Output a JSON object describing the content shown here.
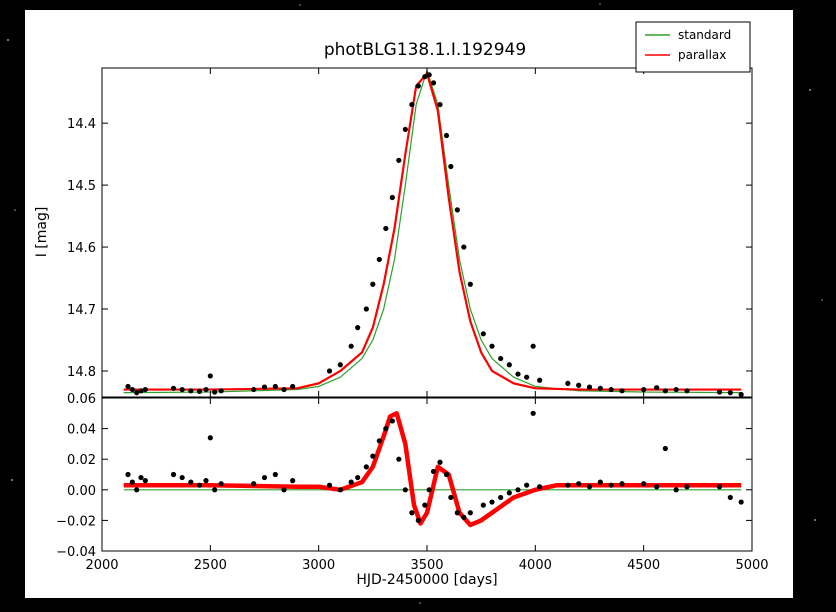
{
  "chart_data": [
    {
      "type": "line",
      "title": "photBLG138.1.I.192949",
      "ylabel": "I [mag]",
      "xlim": [
        2000,
        5000
      ],
      "xticks": [
        2000,
        2500,
        3000,
        3500,
        4000,
        4500,
        5000
      ],
      "xtick_labels": false,
      "ylim": [
        14.842,
        14.311
      ],
      "yticks": [
        14.4,
        14.5,
        14.6,
        14.7,
        14.8
      ],
      "legend": "outside upper right",
      "series": [
        {
          "name": "standard",
          "color": "#2ca02c",
          "style": "line",
          "linewidth": 1.2,
          "x": [
            2100,
            2500,
            2900,
            3000,
            3100,
            3200,
            3250,
            3300,
            3350,
            3400,
            3450,
            3500,
            3550,
            3600,
            3650,
            3700,
            3750,
            3800,
            3900,
            4000,
            4200,
            4500,
            4950
          ],
          "values": [
            14.835,
            14.834,
            14.83,
            14.825,
            14.81,
            14.78,
            14.75,
            14.7,
            14.62,
            14.5,
            14.37,
            14.315,
            14.37,
            14.5,
            14.62,
            14.7,
            14.75,
            14.78,
            14.81,
            14.825,
            14.832,
            14.834,
            14.835
          ]
        },
        {
          "name": "parallax",
          "color": "#ff0000",
          "style": "line",
          "linewidth": 2.2,
          "x": [
            2100,
            2500,
            2900,
            3000,
            3100,
            3200,
            3250,
            3300,
            3350,
            3400,
            3450,
            3500,
            3550,
            3600,
            3650,
            3700,
            3750,
            3800,
            3900,
            4000,
            4200,
            4500,
            4950
          ],
          "values": [
            14.83,
            14.83,
            14.828,
            14.82,
            14.8,
            14.77,
            14.73,
            14.66,
            14.57,
            14.45,
            14.34,
            14.32,
            14.38,
            14.52,
            14.64,
            14.72,
            14.77,
            14.8,
            14.82,
            14.828,
            14.83,
            14.83,
            14.83
          ]
        },
        {
          "color": "#000000",
          "style": "points",
          "x": [
            2120,
            2140,
            2160,
            2180,
            2200,
            2330,
            2370,
            2410,
            2450,
            2480,
            2500,
            2520,
            2550,
            2700,
            2750,
            2800,
            2840,
            2880,
            3050,
            3100,
            3150,
            3180,
            3220,
            3250,
            3280,
            3310,
            3340,
            3370,
            3400,
            3430,
            3460,
            3490,
            3510,
            3530,
            3560,
            3590,
            3610,
            3640,
            3670,
            3700,
            3760,
            3800,
            3840,
            3880,
            3920,
            3960,
            3990,
            4020,
            4150,
            4200,
            4250,
            4300,
            4350,
            4400,
            4500,
            4560,
            4600,
            4650,
            4700,
            4850,
            4900,
            4950
          ],
          "values": [
            14.825,
            14.83,
            14.835,
            14.832,
            14.83,
            14.828,
            14.83,
            14.832,
            14.833,
            14.83,
            14.808,
            14.834,
            14.832,
            14.83,
            14.826,
            14.825,
            14.83,
            14.825,
            14.8,
            14.79,
            14.76,
            14.73,
            14.7,
            14.66,
            14.62,
            14.57,
            14.52,
            14.46,
            14.41,
            14.37,
            14.34,
            14.325,
            14.322,
            14.335,
            14.37,
            14.42,
            14.47,
            14.54,
            14.6,
            14.66,
            14.74,
            14.76,
            14.78,
            14.79,
            14.805,
            14.81,
            14.76,
            14.815,
            14.82,
            14.823,
            14.826,
            14.828,
            14.83,
            14.832,
            14.83,
            14.827,
            14.832,
            14.83,
            14.832,
            14.834,
            14.835,
            14.838
          ]
        }
      ]
    },
    {
      "type": "line",
      "xlabel": "HJD-2450000 [days]",
      "xlim": [
        2000,
        5000
      ],
      "xticks": [
        2000,
        2500,
        3000,
        3500,
        4000,
        4500,
        5000
      ],
      "xtick_labels": true,
      "ylim": [
        -0.04,
        0.06
      ],
      "yticks": [
        {
          "value": -0.04,
          "label": "−0.04"
        },
        {
          "value": -0.02,
          "label": "−0.02"
        },
        {
          "value": 0,
          "label": "0.00"
        },
        0.02,
        0.04,
        0.06
      ],
      "series": [
        {
          "color": "#2ca02c",
          "style": "line",
          "linewidth": 1.2,
          "x": [
            2100,
            4950
          ],
          "values": [
            0,
            0
          ]
        },
        {
          "color": "#ff0000",
          "style": "line",
          "linewidth": 4.5,
          "x": [
            2100,
            2500,
            2900,
            3000,
            3100,
            3200,
            3250,
            3300,
            3330,
            3360,
            3400,
            3440,
            3470,
            3500,
            3550,
            3600,
            3650,
            3700,
            3750,
            3800,
            3900,
            4000,
            4100,
            4500,
            4950
          ],
          "values": [
            0.003,
            0.003,
            0.002,
            0.002,
            0.0,
            0.005,
            0.015,
            0.035,
            0.048,
            0.05,
            0.03,
            -0.01,
            -0.022,
            -0.015,
            0.015,
            0.01,
            -0.015,
            -0.023,
            -0.02,
            -0.015,
            -0.005,
            0.0,
            0.003,
            0.003,
            0.003
          ]
        },
        {
          "color": "#000000",
          "style": "points",
          "x": [
            2120,
            2140,
            2160,
            2180,
            2200,
            2330,
            2370,
            2410,
            2450,
            2480,
            2500,
            2520,
            2550,
            2700,
            2750,
            2800,
            2840,
            2880,
            3050,
            3100,
            3150,
            3180,
            3220,
            3250,
            3280,
            3310,
            3340,
            3370,
            3400,
            3430,
            3460,
            3490,
            3510,
            3530,
            3560,
            3590,
            3610,
            3640,
            3670,
            3700,
            3760,
            3800,
            3840,
            3880,
            3920,
            3960,
            3990,
            4020,
            4150,
            4200,
            4250,
            4300,
            4350,
            4400,
            4500,
            4560,
            4600,
            4650,
            4700,
            4850,
            4900,
            4950
          ],
          "values": [
            0.01,
            0.005,
            0.0,
            0.008,
            0.006,
            0.01,
            0.008,
            0.005,
            0.003,
            0.006,
            0.034,
            0.0,
            0.004,
            0.004,
            0.008,
            0.01,
            0.0,
            0.006,
            0.003,
            0.0,
            0.005,
            0.008,
            0.015,
            0.022,
            0.032,
            0.04,
            0.045,
            0.02,
            0.0,
            -0.015,
            -0.02,
            -0.01,
            0.0,
            0.012,
            0.018,
            0.01,
            -0.005,
            -0.015,
            -0.018,
            -0.015,
            -0.01,
            -0.008,
            -0.005,
            -0.002,
            0.0,
            0.003,
            0.05,
            0.002,
            0.003,
            0.004,
            0.002,
            0.005,
            0.003,
            0.004,
            0.004,
            0.002,
            0.027,
            0.0,
            0.002,
            0.002,
            -0.005,
            -0.008
          ]
        }
      ]
    }
  ]
}
